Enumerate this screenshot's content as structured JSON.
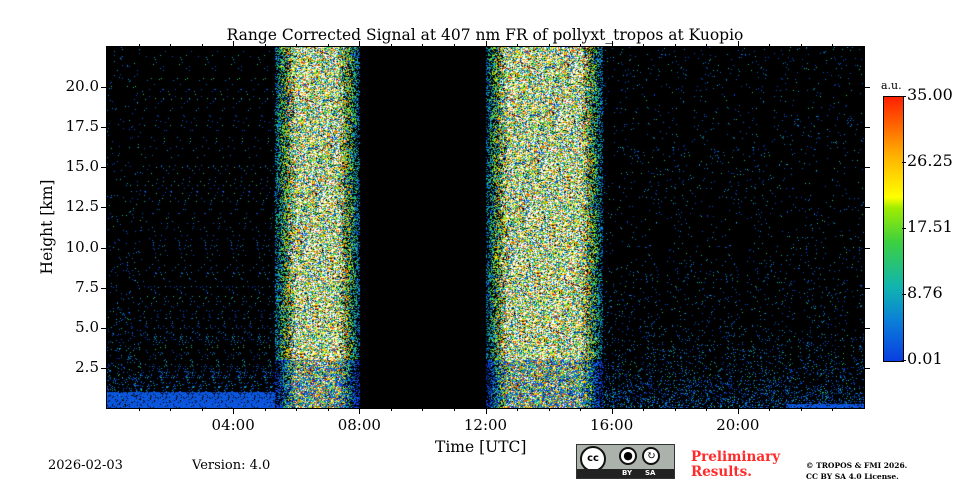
{
  "chart_data": {
    "type": "heatmap",
    "title": "Range Corrected Signal at 407 nm FR of pollyxt_tropos at Kuopio",
    "xlabel": "Time [UTC]",
    "ylabel": "Height [km]",
    "xlim_hours": [
      0,
      24
    ],
    "ylim_km": [
      0,
      22.5
    ],
    "xticks": [
      {
        "v": 4,
        "label": "04:00"
      },
      {
        "v": 8,
        "label": "08:00"
      },
      {
        "v": 12,
        "label": "12:00"
      },
      {
        "v": 16,
        "label": "16:00"
      },
      {
        "v": 20,
        "label": "20:00"
      }
    ],
    "yticks": [
      {
        "v": 2.5,
        "label": "2.5"
      },
      {
        "v": 5,
        "label": "5.0"
      },
      {
        "v": 7.5,
        "label": "7.5"
      },
      {
        "v": 10,
        "label": "10.0"
      },
      {
        "v": 12.5,
        "label": "12.5"
      },
      {
        "v": 15,
        "label": "15.0"
      },
      {
        "v": 17.5,
        "label": "17.5"
      },
      {
        "v": 20,
        "label": "20.0"
      }
    ],
    "colorbar": {
      "unit": "a.u.",
      "range": [
        0.01,
        35.0
      ],
      "ticks": [
        {
          "v": 35.0,
          "label": "35.00"
        },
        {
          "v": 26.25,
          "label": "26.25"
        },
        {
          "v": 17.51,
          "label": "17.51"
        },
        {
          "v": 8.76,
          "label": "8.76"
        },
        {
          "v": 0.01,
          "label": "0.01"
        }
      ]
    },
    "regions": [
      {
        "t": [
          0,
          5.3
        ],
        "kind": "night-sparse",
        "boundary_layer_top_km": 1.0
      },
      {
        "t": [
          5.3,
          8.0
        ],
        "kind": "daylight-noisy"
      },
      {
        "t": [
          8.0,
          12.0
        ],
        "kind": "no-data"
      },
      {
        "t": [
          12.0,
          15.7
        ],
        "kind": "daylight-noisy"
      },
      {
        "t": [
          15.7,
          24
        ],
        "kind": "night-sparse",
        "boundary_layer_top_km": 0.3
      }
    ]
  },
  "footer": {
    "date": "2026-02-03",
    "version": "Version: 4.0",
    "preliminary": "Preliminary",
    "results": "Results.",
    "copyright": "© TROPOS & FMI 2026.",
    "license": "CC BY SA 4.0 License.",
    "cc": "cc",
    "by": "BY",
    "sa": "SA"
  }
}
